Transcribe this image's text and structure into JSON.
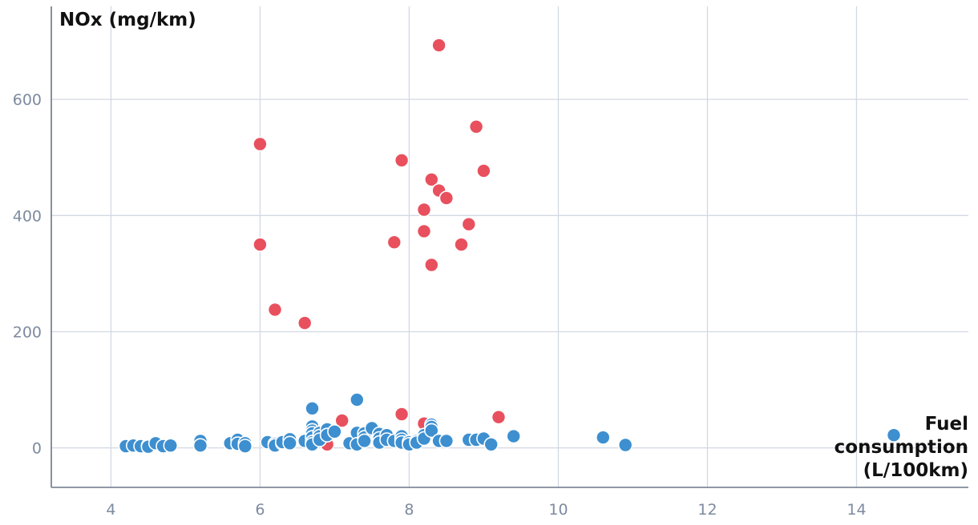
{
  "chart_data": {
    "type": "scatter",
    "title": "",
    "ylabel": "NOx (mg/km)",
    "xlabel_lines": [
      "Fuel",
      "consumption",
      "(L/100km)"
    ],
    "xlim": [
      3.2,
      15.5
    ],
    "ylim": [
      -68,
      760
    ],
    "x_ticks": [
      4,
      6,
      8,
      10,
      12,
      14
    ],
    "y_ticks": [
      0,
      200,
      400,
      600
    ],
    "grid": true,
    "colors": {
      "series_red": "#e8505e",
      "series_blue": "#3d8fd0",
      "grid": "#d3d8e3",
      "tick_text": "#7d8aa0"
    },
    "series": [
      {
        "color": "#e8505e",
        "points": [
          [
            8.4,
            693
          ],
          [
            8.9,
            553
          ],
          [
            6.0,
            523
          ],
          [
            7.9,
            495
          ],
          [
            9.0,
            477
          ],
          [
            8.3,
            462
          ],
          [
            8.4,
            443
          ],
          [
            8.5,
            430
          ],
          [
            8.2,
            410
          ],
          [
            8.8,
            385
          ],
          [
            8.2,
            373
          ],
          [
            7.8,
            354
          ],
          [
            6.0,
            350
          ],
          [
            8.7,
            350
          ],
          [
            8.3,
            315
          ],
          [
            6.2,
            238
          ],
          [
            6.6,
            215
          ],
          [
            7.9,
            58
          ],
          [
            9.2,
            53
          ],
          [
            7.1,
            47
          ],
          [
            8.2,
            42
          ],
          [
            6.9,
            6
          ],
          [
            5.6,
            7
          ]
        ]
      },
      {
        "color": "#3d8fd0",
        "points": [
          [
            4.2,
            3
          ],
          [
            4.3,
            4
          ],
          [
            4.4,
            3
          ],
          [
            4.5,
            4
          ],
          [
            4.5,
            2
          ],
          [
            4.6,
            8
          ],
          [
            4.7,
            3
          ],
          [
            4.8,
            4
          ],
          [
            5.2,
            12
          ],
          [
            5.2,
            4
          ],
          [
            5.6,
            8
          ],
          [
            5.7,
            14
          ],
          [
            5.7,
            7
          ],
          [
            5.8,
            8
          ],
          [
            5.8,
            3
          ],
          [
            6.1,
            10
          ],
          [
            6.2,
            7
          ],
          [
            6.2,
            4
          ],
          [
            6.3,
            8
          ],
          [
            6.3,
            10
          ],
          [
            6.4,
            15
          ],
          [
            6.4,
            8
          ],
          [
            6.6,
            12
          ],
          [
            6.7,
            68
          ],
          [
            6.7,
            37
          ],
          [
            6.7,
            30
          ],
          [
            6.7,
            25
          ],
          [
            6.7,
            18
          ],
          [
            6.7,
            10
          ],
          [
            6.7,
            6
          ],
          [
            6.8,
            26
          ],
          [
            6.8,
            20
          ],
          [
            6.8,
            14
          ],
          [
            6.9,
            32
          ],
          [
            6.9,
            22
          ],
          [
            7.0,
            28
          ],
          [
            7.2,
            8
          ],
          [
            7.3,
            83
          ],
          [
            7.3,
            26
          ],
          [
            7.3,
            6
          ],
          [
            7.4,
            25
          ],
          [
            7.4,
            18
          ],
          [
            7.4,
            12
          ],
          [
            7.5,
            34
          ],
          [
            7.6,
            24
          ],
          [
            7.6,
            16
          ],
          [
            7.6,
            9
          ],
          [
            7.7,
            22
          ],
          [
            7.7,
            14
          ],
          [
            7.8,
            12
          ],
          [
            7.9,
            20
          ],
          [
            7.9,
            14
          ],
          [
            7.9,
            9
          ],
          [
            8.0,
            10
          ],
          [
            8.0,
            6
          ],
          [
            8.1,
            12
          ],
          [
            8.1,
            9
          ],
          [
            8.2,
            22
          ],
          [
            8.2,
            16
          ],
          [
            8.3,
            40
          ],
          [
            8.3,
            36
          ],
          [
            8.3,
            30
          ],
          [
            8.4,
            12
          ],
          [
            8.5,
            12
          ],
          [
            8.8,
            14
          ],
          [
            8.9,
            14
          ],
          [
            9.0,
            16
          ],
          [
            9.1,
            6
          ],
          [
            9.4,
            20
          ],
          [
            10.6,
            18
          ],
          [
            10.9,
            5
          ],
          [
            14.5,
            22
          ]
        ]
      }
    ]
  }
}
